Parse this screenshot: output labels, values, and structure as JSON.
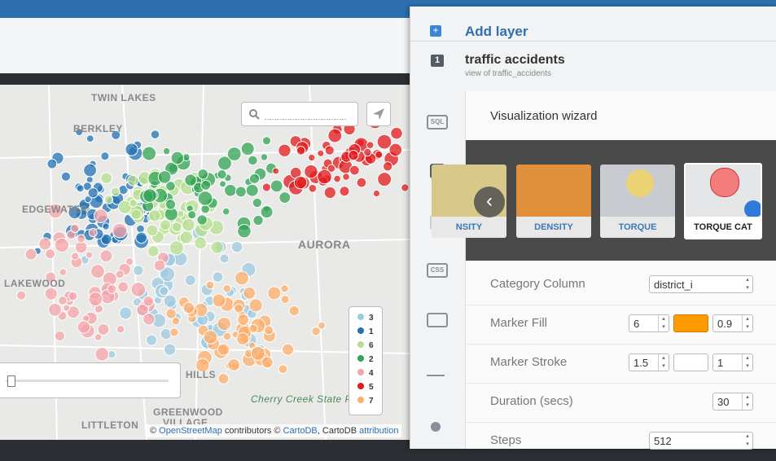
{
  "map": {
    "place_labels": [
      "TWIN LAKES",
      "BERKLEY",
      "EDGEWATER",
      "LAKEWOOD",
      "AURORA",
      "HILLS",
      "GREENWOOD",
      "VILLAGE",
      "LITTLETON",
      "Cherry Creek State P"
    ],
    "legend": [
      {
        "label": "3",
        "color": "#9ecae1"
      },
      {
        "label": "1",
        "color": "#2171b5"
      },
      {
        "label": "6",
        "color": "#b5df8f"
      },
      {
        "label": "2",
        "color": "#31a354"
      },
      {
        "label": "4",
        "color": "#f4a3a8"
      },
      {
        "label": "5",
        "color": "#e31a1c"
      },
      {
        "label": "7",
        "color": "#fdae6b"
      }
    ],
    "attribution": [
      "©",
      "OpenStreetMap",
      "contributors ©",
      "CartoDB",
      ", CartoDB",
      "attribution"
    ]
  },
  "panel": {
    "add_layer": "Add layer",
    "layer_number": "1",
    "layer_title": "traffic accidents",
    "layer_subtitle": "view of traffic_accidents",
    "sidebar_icons": [
      "SQL",
      "CSS"
    ],
    "wizard_title": "Visualization wizard",
    "wizard_types": [
      "NSITY",
      "DENSITY",
      "TORQUE",
      "TORQUE CAT"
    ],
    "form": [
      {
        "label": "Category Column",
        "value": "district_i"
      },
      {
        "label": "Marker Fill",
        "inputs": [
          "6",
          "0.9"
        ]
      },
      {
        "label": "Marker Stroke",
        "inputs": [
          "1.5",
          "1"
        ]
      },
      {
        "label": "Duration (secs)",
        "inputs": [
          "30"
        ]
      },
      {
        "label": "Steps",
        "value": "512"
      }
    ]
  }
}
